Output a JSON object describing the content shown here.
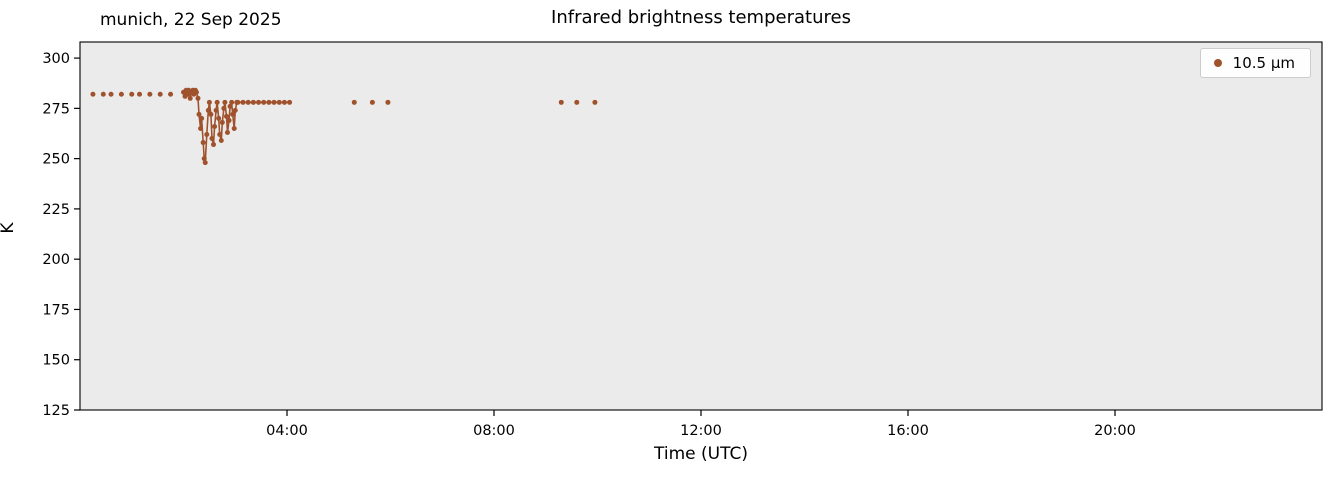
{
  "figure": {
    "background": "#ffffff"
  },
  "chart_data": {
    "type": "line",
    "title": "Infrared brightness temperatures",
    "annotation": "munich, 22 Sep 2025",
    "xlabel": "Time (UTC)",
    "ylabel": "K",
    "xlim": [
      0,
      24
    ],
    "ylim": [
      125,
      308
    ],
    "plot_background": "#ebebeb",
    "grid": false,
    "xticks": {
      "values": [
        4,
        8,
        12,
        16,
        20
      ],
      "labels": [
        "04:00",
        "08:00",
        "12:00",
        "16:00",
        "20:00"
      ]
    },
    "yticks": {
      "values": [
        125,
        150,
        175,
        200,
        225,
        250,
        275,
        300
      ],
      "labels": [
        "125",
        "150",
        "175",
        "200",
        "225",
        "250",
        "275",
        "300"
      ]
    },
    "legend": {
      "position": "upper right",
      "entries": [
        {
          "label": "10.5 µm",
          "color": "#a0522d",
          "marker": "dot"
        }
      ]
    },
    "series": [
      {
        "name": "10.5 µm",
        "color": "#a0522d",
        "marker": "dot",
        "marker_radius": 2.5,
        "line_width": 1.6,
        "connect_max_gap_hours": 0.12,
        "points": [
          [
            0.25,
            282
          ],
          [
            0.45,
            282
          ],
          [
            0.6,
            282
          ],
          [
            0.8,
            282
          ],
          [
            1.0,
            282
          ],
          [
            1.15,
            282
          ],
          [
            1.35,
            282
          ],
          [
            1.55,
            282
          ],
          [
            1.75,
            282
          ],
          [
            2.0,
            283
          ],
          [
            2.03,
            281
          ],
          [
            2.05,
            284
          ],
          [
            2.08,
            282
          ],
          [
            2.1,
            284
          ],
          [
            2.13,
            280
          ],
          [
            2.15,
            283
          ],
          [
            2.18,
            284
          ],
          [
            2.2,
            282
          ],
          [
            2.23,
            284
          ],
          [
            2.25,
            283
          ],
          [
            2.28,
            280
          ],
          [
            2.3,
            272
          ],
          [
            2.33,
            265
          ],
          [
            2.35,
            270
          ],
          [
            2.38,
            258
          ],
          [
            2.4,
            250
          ],
          [
            2.42,
            248
          ],
          [
            2.45,
            262
          ],
          [
            2.48,
            274
          ],
          [
            2.5,
            278
          ],
          [
            2.53,
            272
          ],
          [
            2.55,
            260
          ],
          [
            2.58,
            257
          ],
          [
            2.6,
            266
          ],
          [
            2.63,
            274
          ],
          [
            2.65,
            278
          ],
          [
            2.68,
            270
          ],
          [
            2.7,
            262
          ],
          [
            2.73,
            259
          ],
          [
            2.75,
            268
          ],
          [
            2.78,
            275
          ],
          [
            2.8,
            278
          ],
          [
            2.83,
            271
          ],
          [
            2.85,
            263
          ],
          [
            2.88,
            269
          ],
          [
            2.9,
            276
          ],
          [
            2.93,
            278
          ],
          [
            2.95,
            272
          ],
          [
            2.98,
            265
          ],
          [
            3.0,
            274
          ],
          [
            3.03,
            278
          ],
          [
            3.05,
            278
          ],
          [
            3.15,
            278
          ],
          [
            3.25,
            278
          ],
          [
            3.35,
            278
          ],
          [
            3.45,
            278
          ],
          [
            3.55,
            278
          ],
          [
            3.65,
            278
          ],
          [
            3.75,
            278
          ],
          [
            3.85,
            278
          ],
          [
            3.95,
            278
          ],
          [
            4.05,
            278
          ],
          [
            5.3,
            278
          ],
          [
            5.65,
            278
          ],
          [
            5.95,
            278
          ],
          [
            9.3,
            278
          ],
          [
            9.6,
            278
          ],
          [
            9.95,
            278
          ]
        ]
      }
    ]
  }
}
